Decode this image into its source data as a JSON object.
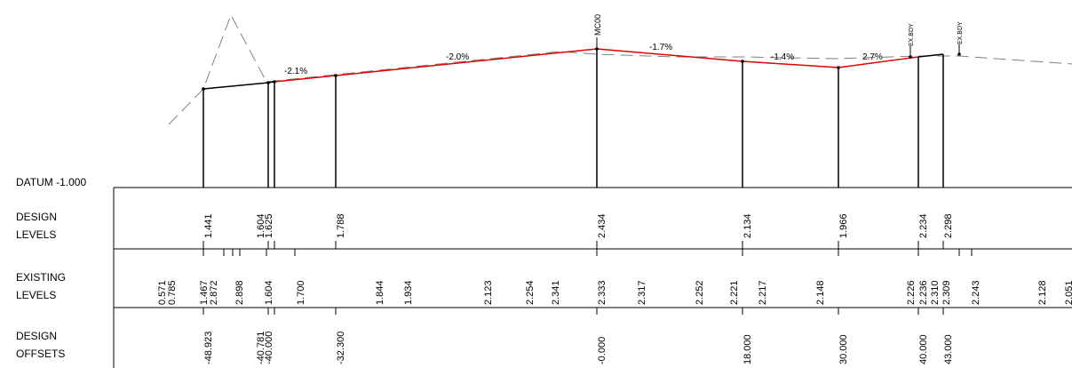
{
  "datum_label": "DATUM -1.000",
  "row_labels": {
    "design_levels": [
      "DESIGN",
      "LEVELS"
    ],
    "existing_levels": [
      "EXISTING",
      "LEVELS"
    ],
    "design_offsets": [
      "DESIGN",
      "OFFSETS"
    ]
  },
  "top_labels": {
    "centreline": "MC00",
    "edge_1": "EX.BDY",
    "edge_2": "EX.BDY"
  },
  "grade_labels": [
    "-2.1%",
    "-2.0%",
    "-1.7%",
    "-1.4%",
    "2.7%"
  ],
  "stations": [
    {
      "design_level": "1.441",
      "offset": "-48.923"
    },
    {
      "design_level": "1.604",
      "offset": "-40.781"
    },
    {
      "design_level": "1.625",
      "offset": "-40.000"
    },
    {
      "design_level": "1.788",
      "offset": "-32.300"
    },
    {
      "design_level": "2.434",
      "offset": "-0.000"
    },
    {
      "design_level": "2.134",
      "offset": "18.000"
    },
    {
      "design_level": "1.966",
      "offset": "30.000"
    },
    {
      "design_level": "2.234",
      "offset": "40.000"
    },
    {
      "design_level": "2.298",
      "offset": "43.000"
    }
  ],
  "existing_levels": [
    "0.571",
    "0.785",
    "1.467",
    "2.872",
    "2.898",
    "1.604",
    "1.700",
    "1.844",
    "1.934",
    "2.123",
    "2.254",
    "2.341",
    "2.333",
    "2.317",
    "2.252",
    "2.221",
    "2.217",
    "2.148",
    "2.226",
    "2.236",
    "2.310",
    "2.309",
    "2.243",
    "2.128",
    "2.051"
  ],
  "colors": {
    "design": "#e00000",
    "existing": "#808080",
    "lines": "#000000"
  }
}
